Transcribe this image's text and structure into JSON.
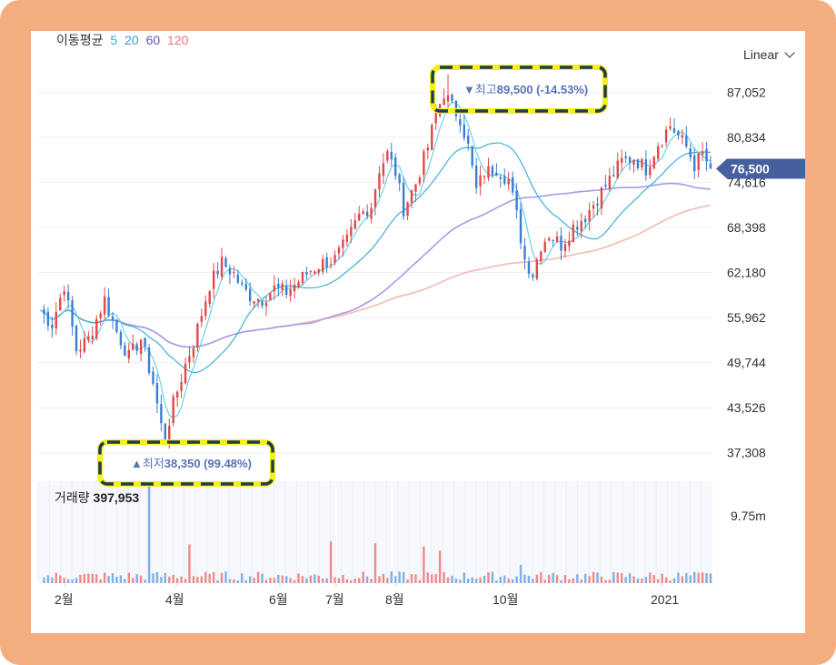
{
  "moving_average": {
    "label": "이동평균",
    "periods": [
      {
        "value": "5",
        "color": "#26b5cf"
      },
      {
        "value": "20",
        "color": "#3d9ad6"
      },
      {
        "value": "60",
        "color": "#6a52c6"
      },
      {
        "value": "120",
        "color": "#f07474"
      }
    ],
    "line_colors": {
      "ma5": "#6bd3e6",
      "ma20": "#3fb0d8",
      "ma60": "#a99be6",
      "ma120": "#f8b7b3"
    }
  },
  "scale": {
    "label": "Linear"
  },
  "volume": {
    "label": "거래량",
    "value": "397,953",
    "axis_label": "9.75m"
  },
  "current_price": {
    "label": "76,500",
    "value": 76500,
    "color": "#465f9e"
  },
  "high_marker": {
    "arrow": "▼",
    "label": "최고",
    "value_text": "89,500 (-14.53%)"
  },
  "low_marker": {
    "arrow": "▲",
    "label": "최저",
    "value_text": "38,350 (99.48%)"
  },
  "chart_data": {
    "type": "candlestick",
    "y_ticks": [
      "87,052",
      "80,834",
      "74,616",
      "68,398",
      "62,180",
      "55,962",
      "49,744",
      "43,526",
      "37,308"
    ],
    "x_ticks": [
      "2월",
      "4월",
      "6월",
      "7월",
      "8월",
      "10월",
      "2021"
    ],
    "ylim": [
      34000,
      92500
    ],
    "high": 89500,
    "low": 38350,
    "close": 76500,
    "up_color": "#e2484a",
    "down_color": "#3a7fd0",
    "price_path": [
      [
        0,
        57000
      ],
      [
        3,
        55000
      ],
      [
        6,
        60500
      ],
      [
        9,
        51500
      ],
      [
        12,
        53000
      ],
      [
        16,
        58500
      ],
      [
        19,
        54000
      ],
      [
        22,
        50500
      ],
      [
        25,
        53000
      ],
      [
        28,
        47000
      ],
      [
        30,
        41000
      ],
      [
        31,
        39500
      ],
      [
        33,
        44000
      ],
      [
        36,
        49500
      ],
      [
        38,
        52500
      ],
      [
        40,
        56500
      ],
      [
        42,
        60500
      ],
      [
        45,
        63500
      ],
      [
        48,
        62000
      ],
      [
        50,
        60000
      ],
      [
        52,
        59000
      ],
      [
        55,
        58500
      ],
      [
        58,
        60000
      ],
      [
        61,
        59500
      ],
      [
        64,
        61000
      ],
      [
        67,
        62500
      ],
      [
        70,
        63500
      ],
      [
        73,
        64000
      ],
      [
        76,
        66500
      ],
      [
        79,
        70000
      ],
      [
        82,
        71500
      ],
      [
        84,
        76500
      ],
      [
        86,
        78500
      ],
      [
        88,
        76000
      ],
      [
        90,
        71000
      ],
      [
        93,
        74500
      ],
      [
        96,
        79500
      ],
      [
        98,
        84000
      ],
      [
        100,
        87000
      ],
      [
        102,
        85000
      ],
      [
        104,
        83500
      ],
      [
        106,
        79500
      ],
      [
        108,
        73500
      ],
      [
        110,
        76000
      ],
      [
        113,
        76500
      ],
      [
        116,
        75000
      ],
      [
        118,
        70000
      ],
      [
        120,
        64000
      ],
      [
        122,
        62000
      ],
      [
        124,
        66000
      ],
      [
        126,
        67500
      ],
      [
        129,
        66000
      ],
      [
        132,
        68500
      ],
      [
        135,
        70000
      ],
      [
        138,
        72500
      ],
      [
        141,
        75000
      ],
      [
        144,
        77500
      ],
      [
        147,
        78000
      ],
      [
        150,
        76500
      ],
      [
        153,
        80000
      ],
      [
        156,
        82500
      ],
      [
        158,
        81000
      ],
      [
        160,
        79500
      ],
      [
        162,
        77000
      ],
      [
        164,
        78500
      ],
      [
        166,
        76500
      ]
    ],
    "volume_spikes": [
      [
        27,
        9.7
      ],
      [
        37,
        3.8
      ],
      [
        72,
        4.1
      ],
      [
        83,
        3.9
      ],
      [
        95,
        3.6
      ],
      [
        99,
        3.2
      ],
      [
        119,
        1.8
      ]
    ]
  }
}
